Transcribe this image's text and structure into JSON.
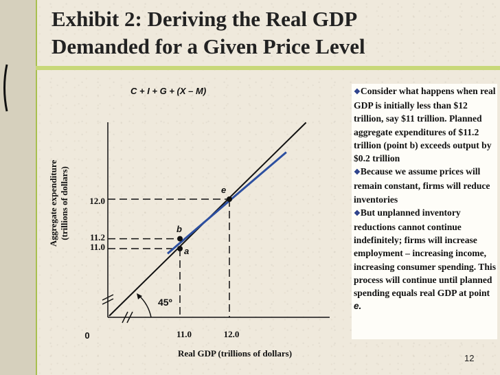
{
  "title": {
    "line1": "Exhibit 2: Deriving the Real GDP",
    "line2": "Demanded for a Given Price Level"
  },
  "slide_number": "12",
  "bullets": [
    "Consider what happens when real GDP is initially less than $12 trillion, say $11 trillion.  Planned aggregate expenditures of $11.2 trillion (point b) exceeds output by $0.2 trillion",
    "Because we assume prices will remain constant, firms will reduce inventories",
    "But unplanned inventory reductions cannot continue indefinitely; firms will increase employment – increasing income, increasing consumer spending.  This process will continue until planned spending equals real GDP at point "
  ],
  "bullet3_point": "e.",
  "chart_data": {
    "type": "line",
    "curve_label": "C + I + G + (X – M)",
    "xlabel": "Real GDP (trillions of dollars)",
    "ylabel_line1": "Aggregate expenditure",
    "ylabel_line2": "(trillions of dollars)",
    "origin_label": "0",
    "angle_label": "45º",
    "x_ticks": [
      "11.0",
      "12.0"
    ],
    "y_ticks": [
      "12.0",
      "11.2",
      "11.0"
    ],
    "series": [
      {
        "name": "45-degree line",
        "x": [
          0,
          13.5
        ],
        "y": [
          0,
          13.5
        ]
      },
      {
        "name": "C + I + G + (X – M)",
        "x": [
          10.75,
          13.15
        ],
        "y": [
          10.9,
          12.95
        ]
      }
    ],
    "points": [
      {
        "label": "e",
        "x": 12.0,
        "y": 12.0
      },
      {
        "label": "b",
        "x": 11.0,
        "y": 11.2
      },
      {
        "label": "a",
        "x": 11.0,
        "y": 11.0
      }
    ]
  }
}
